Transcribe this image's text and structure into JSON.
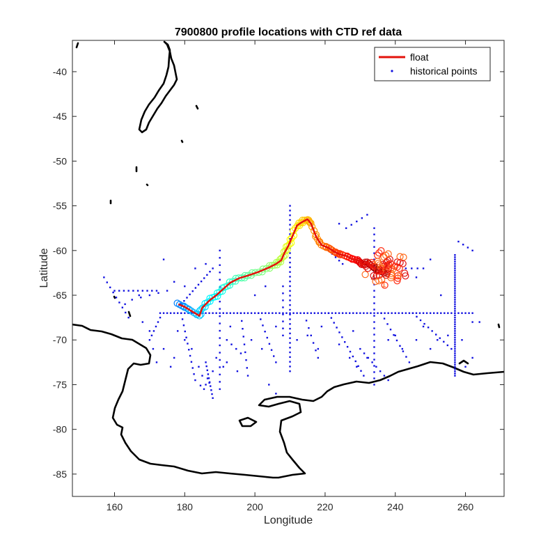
{
  "chart_data": {
    "type": "scatter",
    "title": "7900800 profile locations with CTD ref data",
    "xlabel": "Longitude",
    "ylabel": "Latitude",
    "xlim": [
      148,
      271
    ],
    "ylim": [
      -87.5,
      -36.5
    ],
    "xticks": [
      160,
      180,
      200,
      220,
      240,
      260
    ],
    "yticks": [
      -40,
      -45,
      -50,
      -55,
      -60,
      -65,
      -70,
      -75,
      -80,
      -85
    ],
    "grid": false,
    "legend": {
      "placement": "top-right",
      "entries": [
        {
          "label": "float",
          "color": "#e3120b",
          "marker": "line"
        },
        {
          "label": "historical points",
          "color": "#1010e0",
          "marker": "dot"
        }
      ]
    },
    "float_track": {
      "name": "float",
      "color": "#e3120b",
      "points": [
        [
          178.2,
          -66.0
        ],
        [
          180.0,
          -66.3
        ],
        [
          182.0,
          -66.8
        ],
        [
          184.2,
          -67.3
        ],
        [
          185.0,
          -66.4
        ],
        [
          187.0,
          -65.6
        ],
        [
          189.0,
          -65.0
        ],
        [
          191.0,
          -64.3
        ],
        [
          193.0,
          -63.6
        ],
        [
          195.5,
          -63.1
        ],
        [
          198.0,
          -62.8
        ],
        [
          201.0,
          -62.4
        ],
        [
          204.0,
          -61.9
        ],
        [
          206.0,
          -61.5
        ],
        [
          207.5,
          -61.1
        ],
        [
          208.5,
          -60.2
        ],
        [
          209.5,
          -59.5
        ],
        [
          210.5,
          -58.6
        ],
        [
          212.0,
          -57.2
        ],
        [
          213.5,
          -56.8
        ],
        [
          215.0,
          -56.5
        ],
        [
          216.0,
          -57.0
        ],
        [
          217.5,
          -58.5
        ],
        [
          219.0,
          -59.4
        ],
        [
          221.0,
          -59.7
        ],
        [
          222.5,
          -60.1
        ],
        [
          224.0,
          -60.4
        ],
        [
          226.0,
          -60.6
        ],
        [
          228.0,
          -61.0
        ],
        [
          229.5,
          -61.1
        ],
        [
          230.5,
          -61.6
        ],
        [
          232.0,
          -61.3
        ],
        [
          233.5,
          -61.8
        ],
        [
          235.0,
          -62.2
        ],
        [
          236.5,
          -62.4
        ]
      ]
    },
    "cluster_labels": [
      "1",
      "1",
      "4",
      "1",
      "0"
    ],
    "historical_points": {
      "name": "historical points",
      "color": "#1010e0",
      "lines": [
        {
          "from": [
            173.0,
            -67.0
          ],
          "to": [
            262.0,
            -67.0
          ],
          "n": 90
        },
        {
          "from": [
            257.0,
            -60.5
          ],
          "to": [
            257.0,
            -74.0
          ],
          "n": 55
        },
        {
          "from": [
            210.0,
            -55.0
          ],
          "to": [
            210.0,
            -73.5
          ],
          "n": 36
        },
        {
          "from": [
            234.0,
            -57.5
          ],
          "to": [
            234.0,
            -75.0
          ],
          "n": 26
        },
        {
          "from": [
            190.0,
            -60.0
          ],
          "to": [
            190.0,
            -75.5
          ],
          "n": 20
        },
        {
          "from": [
            188.0,
            -62.0
          ],
          "to": [
            179.0,
            -66.0
          ],
          "n": 12
        },
        {
          "from": [
            173.0,
            -67.5
          ],
          "to": [
            170.0,
            -70.0
          ],
          "n": 6
        },
        {
          "from": [
            157.0,
            -63.0
          ],
          "to": [
            164.0,
            -67.5
          ],
          "n": 9
        },
        {
          "from": [
            160.0,
            -64.5
          ],
          "to": [
            172.0,
            -64.5
          ],
          "n": 10
        },
        {
          "from": [
            179.0,
            -67.0
          ],
          "to": [
            183.0,
            -74.5
          ],
          "n": 12
        },
        {
          "from": [
            196.0,
            -67.0
          ],
          "to": [
            198.0,
            -74.0
          ],
          "n": 9
        },
        {
          "from": [
            201.0,
            -67.0
          ],
          "to": [
            206.0,
            -72.5
          ],
          "n": 9
        },
        {
          "from": [
            214.0,
            -67.0
          ],
          "to": [
            218.0,
            -72.0
          ],
          "n": 7
        },
        {
          "from": [
            221.0,
            -67.0
          ],
          "to": [
            231.0,
            -74.0
          ],
          "n": 14
        },
        {
          "from": [
            236.0,
            -67.0
          ],
          "to": [
            244.0,
            -72.5
          ],
          "n": 10
        },
        {
          "from": [
            245.0,
            -67.0
          ],
          "to": [
            256.0,
            -71.0
          ],
          "n": 11
        },
        {
          "from": [
            243.0,
            -62.0
          ],
          "to": [
            248.0,
            -62.0
          ],
          "n": 4
        },
        {
          "from": [
            226.0,
            -57.5
          ],
          "to": [
            232.0,
            -56.0
          ],
          "n": 5
        },
        {
          "from": [
            230.0,
            -71.0
          ],
          "to": [
            238.0,
            -74.5
          ],
          "n": 8
        },
        {
          "from": [
            221.0,
            -60.0
          ],
          "to": [
            225.0,
            -61.5
          ],
          "n": 5
        },
        {
          "from": [
            208.0,
            -64.0
          ],
          "to": [
            208.0,
            -69.5
          ],
          "n": 8
        },
        {
          "from": [
            186.0,
            -72.5
          ],
          "to": [
            188.0,
            -76.5
          ],
          "n": 10
        },
        {
          "from": [
            258.0,
            -59.0
          ],
          "to": [
            262.0,
            -60.0
          ],
          "n": 4
        },
        {
          "from": [
            165.0,
            -65.5
          ],
          "to": [
            175.0,
            -64.5
          ],
          "n": 5
        },
        {
          "from": [
            192.0,
            -70.0
          ],
          "to": [
            196.0,
            -71.5
          ],
          "n": 4
        }
      ],
      "points": [
        [
          168.0,
          -68.0
        ],
        [
          170.0,
          -69.0
        ],
        [
          171.0,
          -71.0
        ],
        [
          172.0,
          -72.5
        ],
        [
          174.0,
          -71.0
        ],
        [
          176.0,
          -73.0
        ],
        [
          177.0,
          -72.0
        ],
        [
          184.0,
          -73.0
        ],
        [
          185.0,
          -74.0
        ],
        [
          186.0,
          -75.0
        ],
        [
          186.5,
          -74.3
        ],
        [
          187.0,
          -74.8
        ],
        [
          185.5,
          -75.5
        ],
        [
          184.5,
          -75.1
        ],
        [
          188.0,
          -73.5
        ],
        [
          189.0,
          -72.0
        ],
        [
          191.0,
          -73.0
        ],
        [
          192.0,
          -72.5
        ],
        [
          195.0,
          -73.5
        ],
        [
          199.0,
          -70.0
        ],
        [
          202.0,
          -71.0
        ],
        [
          204.0,
          -75.0
        ],
        [
          206.0,
          -76.0
        ],
        [
          212.0,
          -70.0
        ],
        [
          215.0,
          -69.5
        ],
        [
          218.0,
          -71.0
        ],
        [
          224.0,
          -70.5
        ],
        [
          227.0,
          -72.0
        ],
        [
          229.0,
          -73.0
        ],
        [
          232.0,
          -72.0
        ],
        [
          238.0,
          -70.0
        ],
        [
          240.0,
          -69.5
        ],
        [
          242.0,
          -71.0
        ],
        [
          246.0,
          -70.0
        ],
        [
          250.0,
          -71.0
        ],
        [
          252.0,
          -70.0
        ],
        [
          255.0,
          -69.5
        ],
        [
          259.0,
          -70.0
        ],
        [
          260.0,
          -73.0
        ],
        [
          262.0,
          -72.0
        ],
        [
          163.0,
          -66.0
        ],
        [
          167.0,
          -65.0
        ],
        [
          174.0,
          -61.0
        ],
        [
          177.0,
          -63.5
        ],
        [
          180.0,
          -64.0
        ],
        [
          183.0,
          -62.0
        ],
        [
          186.0,
          -61.5
        ],
        [
          200.0,
          -65.0
        ],
        [
          203.0,
          -64.0
        ],
        [
          224.0,
          -57.0
        ],
        [
          246.0,
          -63.0
        ],
        [
          250.0,
          -61.0
        ],
        [
          253.0,
          -65.0
        ],
        [
          262.0,
          -68.0
        ],
        [
          264.0,
          -68.0
        ],
        [
          182.0,
          -71.0
        ],
        [
          180.0,
          -70.0
        ],
        [
          178.0,
          -69.0
        ],
        [
          193.0,
          -68.5
        ],
        [
          206.0,
          -68.5
        ],
        [
          219.0,
          -68.5
        ],
        [
          228.0,
          -69.0
        ],
        [
          248.0,
          -68.5
        ]
      ]
    }
  }
}
